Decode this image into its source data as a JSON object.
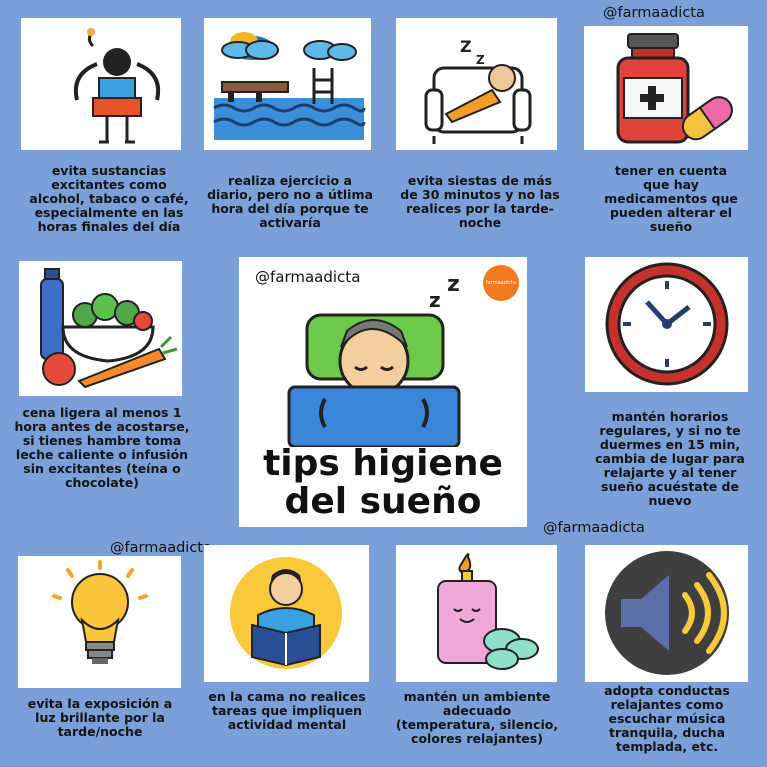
{
  "handles": {
    "top_right": "@farmaadicta",
    "center": "@farmaadicta",
    "bottom_left": "@farmaadicta",
    "middle_right": "@farmaadicta"
  },
  "center": {
    "title_line1": "tips higiene",
    "title_line2": "del sueño",
    "logo_text": "farmaadicta"
  },
  "tips": [
    {
      "icon": "stressed-person-icon",
      "text": "evita sustancias excitantes como alcohol, tabaco o café, especialmente en las horas finales del día"
    },
    {
      "icon": "swimming-pool-icon",
      "text": "realiza ejercicio a diario, pero no a útlima hora del día porque te activaría"
    },
    {
      "icon": "nap-armchair-icon",
      "text": "evita siestas de más de 30 minutos y no las realices por la tarde-noche"
    },
    {
      "icon": "medicine-bottle-icon",
      "text": "tener en cuenta que hay medicamentos que pueden alterar el sueño"
    },
    {
      "icon": "light-dinner-icon",
      "text": "cena ligera al menos 1 hora antes de acostarse, si tienes hambre toma leche caliente o infusión sin excitantes (teína o chocolate)"
    },
    {
      "icon": "clock-icon",
      "text": "mantén horarios regulares, y si no te duermes en 15 min, cambia de lugar para relajarte y al tener sueño acuéstate de nuevo"
    },
    {
      "icon": "light-bulb-icon",
      "text": "evita la exposición a luz brillante por la tarde/noche"
    },
    {
      "icon": "reading-person-icon",
      "text": "en la cama no realices tareas que impliquen actividad mental"
    },
    {
      "icon": "candle-icon",
      "text": "mantén un ambiente adecuado (temperatura, silencio, colores relajantes)"
    },
    {
      "icon": "speaker-icon",
      "text": "adopta conductas relajantes como escuchar música tranquila, ducha templada, etc."
    }
  ]
}
